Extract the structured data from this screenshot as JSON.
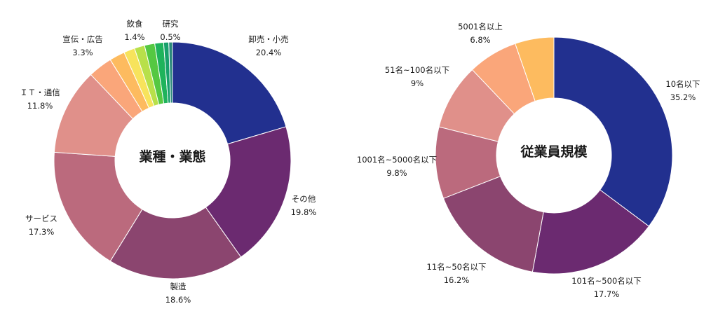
{
  "chart_data": [
    {
      "type": "pie",
      "variant": "donut",
      "center_title": "業種・業態",
      "slices": [
        {
          "label": "卸売・小売",
          "value": 20.4,
          "value_label": "20.4%",
          "color": "#22308f",
          "show_label": true
        },
        {
          "label": "その他",
          "value": 19.8,
          "value_label": "19.8%",
          "color": "#6b2a70",
          "show_label": true
        },
        {
          "label": "製造",
          "value": 18.6,
          "value_label": "18.6%",
          "color": "#8b456f",
          "show_label": true
        },
        {
          "label": "サービス",
          "value": 17.3,
          "value_label": "17.3%",
          "color": "#bb6a7d",
          "show_label": true
        },
        {
          "label": "ＩＴ・通信",
          "value": 11.8,
          "value_label": "11.8%",
          "color": "#e0908a",
          "show_label": true
        },
        {
          "label": "宣伝・広告",
          "value": 3.3,
          "value_label": "3.3%",
          "color": "#faa67a",
          "show_label": true
        },
        {
          "label": "",
          "value": 2.1,
          "value_label": "",
          "color": "#fdbb5f",
          "show_label": false
        },
        {
          "label": "",
          "value": 1.5,
          "value_label": "",
          "color": "#f7e35c",
          "show_label": false
        },
        {
          "label": "飲食",
          "value": 1.4,
          "value_label": "1.4%",
          "color": "#b8e04a",
          "show_label": true
        },
        {
          "label": "",
          "value": 1.4,
          "value_label": "",
          "color": "#55c842",
          "show_label": false
        },
        {
          "label": "",
          "value": 1.2,
          "value_label": "",
          "color": "#1fb35b",
          "show_label": false
        },
        {
          "label": "",
          "value": 0.7,
          "value_label": "",
          "color": "#18a06b",
          "show_label": false
        },
        {
          "label": "研究",
          "value": 0.5,
          "value_label": "0.5%",
          "color": "#2a8a7a",
          "show_label": true
        }
      ]
    },
    {
      "type": "pie",
      "variant": "donut",
      "center_title": "従業員規模",
      "slices": [
        {
          "label": "10名以下",
          "value": 35.2,
          "value_label": "35.2%",
          "color": "#22308f",
          "show_label": true
        },
        {
          "label": "101名~500名以下",
          "value": 17.7,
          "value_label": "17.7%",
          "color": "#6b2a70",
          "show_label": true
        },
        {
          "label": "11名~50名以下",
          "value": 16.2,
          "value_label": "16.2%",
          "color": "#8b456f",
          "show_label": true
        },
        {
          "label": "1001名~5000名以下",
          "value": 9.8,
          "value_label": "9.8%",
          "color": "#bb6a7d",
          "show_label": true
        },
        {
          "label": "51名~100名以下",
          "value": 9.0,
          "value_label": "9%",
          "color": "#e0908a",
          "show_label": true
        },
        {
          "label": "5001名以上",
          "value": 6.8,
          "value_label": "6.8%",
          "color": "#faa67a",
          "show_label": true
        },
        {
          "label": "",
          "value": 5.3,
          "value_label": "",
          "color": "#fdbb5f",
          "show_label": false
        }
      ]
    }
  ]
}
